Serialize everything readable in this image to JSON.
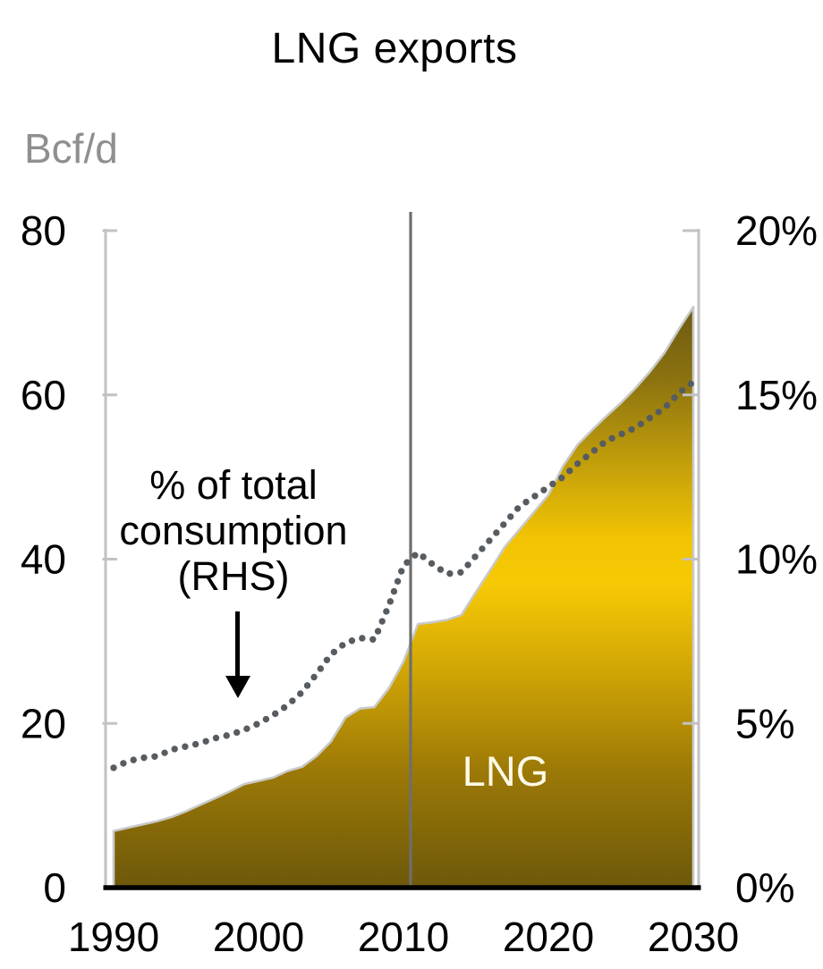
{
  "chart": {
    "title": "LNG exports",
    "left_axis_unit": "Bcf/d",
    "area_label": "LNG",
    "annotation": {
      "line1": "% of total",
      "line2": "consumption",
      "line3": "(RHS)"
    }
  },
  "chart_data": {
    "type": "area",
    "title": "LNG exports",
    "x": [
      1990,
      1991,
      1992,
      1993,
      1994,
      1995,
      1996,
      1997,
      1998,
      1999,
      2000,
      2001,
      2002,
      2003,
      2004,
      2005,
      2006,
      2007,
      2008,
      2009,
      2010,
      2011,
      2012,
      2013,
      2014,
      2015,
      2016,
      2017,
      2018,
      2019,
      2020,
      2021,
      2022,
      2023,
      2024,
      2025,
      2026,
      2027,
      2028,
      2029,
      2030
    ],
    "series": [
      {
        "name": "LNG",
        "type": "area",
        "axis": "left",
        "unit": "Bcf/d",
        "values": [
          6.9,
          7.3,
          7.7,
          8.1,
          8.6,
          9.3,
          10.1,
          10.9,
          11.7,
          12.6,
          13.0,
          13.4,
          14.2,
          14.7,
          16.0,
          17.8,
          20.7,
          21.8,
          22.0,
          24.3,
          27.5,
          32.1,
          32.3,
          32.6,
          33.2,
          36.0,
          38.7,
          41.5,
          43.6,
          45.7,
          47.8,
          51.3,
          53.9,
          55.7,
          57.4,
          59.0,
          60.8,
          62.8,
          65.1,
          68.0,
          70.7
        ]
      },
      {
        "name": "% of total consumption (RHS)",
        "type": "dotted-line",
        "axis": "right",
        "unit": "%",
        "values": [
          3.65,
          3.85,
          3.95,
          4.0,
          4.2,
          4.3,
          4.4,
          4.55,
          4.65,
          4.8,
          5.0,
          5.25,
          5.55,
          5.95,
          6.5,
          7.1,
          7.45,
          7.6,
          7.55,
          8.6,
          9.8,
          10.2,
          9.85,
          9.55,
          9.6,
          10.1,
          10.6,
          11.1,
          11.6,
          11.9,
          12.2,
          12.5,
          12.9,
          13.25,
          13.6,
          13.8,
          14.0,
          14.3,
          14.6,
          15.05,
          15.4
        ]
      }
    ],
    "left_axis": {
      "unit": "Bcf/d",
      "min": 0,
      "max": 80,
      "ticks": [
        0,
        20,
        40,
        60,
        80
      ]
    },
    "right_axis": {
      "min": 0,
      "max": 20,
      "tick_labels": [
        "0%",
        "5%",
        "10%",
        "15%",
        "20%"
      ],
      "tick_values": [
        0,
        5,
        10,
        15,
        20
      ]
    },
    "x_axis": {
      "ticks": [
        1990,
        2000,
        2010,
        2020,
        2030
      ]
    },
    "divider_year": 2010.5,
    "grid": false,
    "legend_position": "none",
    "colors": {
      "area_gradient_stops": [
        [
          0.0,
          "#6d5a12"
        ],
        [
          0.12,
          "#8a7110"
        ],
        [
          0.28,
          "#c6a20a"
        ],
        [
          0.4,
          "#f2c403"
        ],
        [
          0.48,
          "#f6c905"
        ],
        [
          0.62,
          "#d2a705"
        ],
        [
          0.8,
          "#9c7907"
        ],
        [
          1.0,
          "#6d580a"
        ]
      ],
      "area_edge": "#c9c9c9",
      "dotted_line": "#575c61",
      "axis": "#c2c2c2",
      "divider": "#6e6e6e",
      "baseline": "#000000",
      "tick_label": "#000000",
      "unit_label": "#8f8f8f",
      "area_text": "#fdf9e6"
    }
  }
}
